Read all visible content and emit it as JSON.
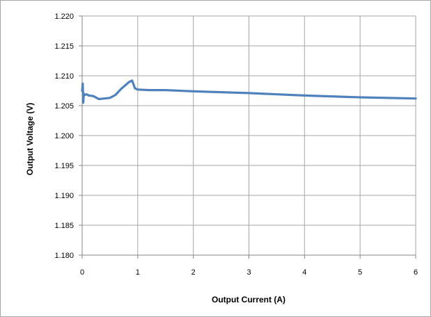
{
  "chart_data": {
    "type": "line",
    "title": "",
    "xlabel": "Output Current (A)",
    "ylabel": "Output Voltage (V)",
    "xlim": [
      0,
      6
    ],
    "ylim": [
      1.18,
      1.22
    ],
    "x_ticks": [
      0,
      1,
      2,
      3,
      4,
      5,
      6
    ],
    "y_ticks": [
      1.18,
      1.185,
      1.19,
      1.195,
      1.2,
      1.205,
      1.21,
      1.215,
      1.22
    ],
    "x_tick_labels": [
      "0",
      "1",
      "2",
      "3",
      "4",
      "5",
      "6"
    ],
    "y_tick_labels": [
      "1.180",
      "1.185",
      "1.190",
      "1.195",
      "1.200",
      "1.205",
      "1.210",
      "1.215",
      "1.220"
    ],
    "grid": true,
    "legend": "none",
    "series": [
      {
        "color": "#4f81bd",
        "x": [
          0.0,
          0.01,
          0.02,
          0.03,
          0.05,
          0.08,
          0.12,
          0.2,
          0.3,
          0.4,
          0.5,
          0.6,
          0.7,
          0.8,
          0.85,
          0.9,
          0.95,
          1.0,
          1.2,
          1.5,
          2.0,
          3.0,
          4.0,
          5.0,
          6.0
        ],
        "y": [
          1.2075,
          1.2087,
          1.2055,
          1.207,
          1.2068,
          1.2069,
          1.2067,
          1.2066,
          1.2061,
          1.2062,
          1.2063,
          1.2068,
          1.2078,
          1.2086,
          1.209,
          1.2092,
          1.2079,
          1.2077,
          1.2076,
          1.2076,
          1.2074,
          1.2071,
          1.2067,
          1.2064,
          1.2062
        ]
      }
    ]
  }
}
